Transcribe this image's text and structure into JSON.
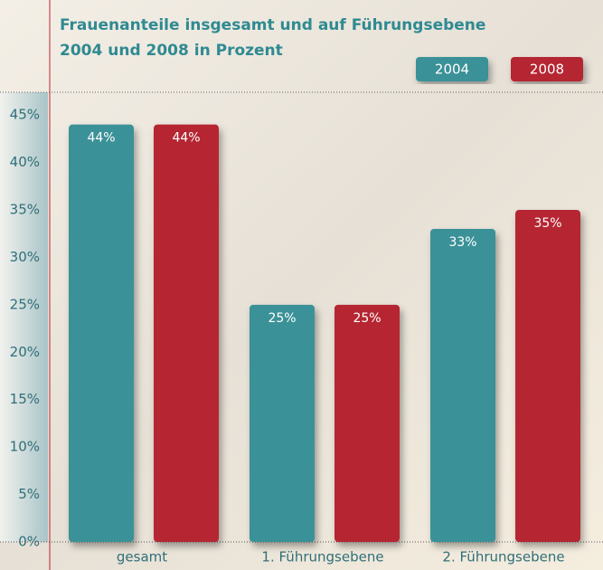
{
  "chart_data": {
    "type": "bar",
    "title": "Frauenanteile insgesamt und auf Führungsebene",
    "subtitle": "2004 und 2008 in Prozent",
    "categories": [
      "gesamt",
      "1. Führungsebene",
      "2. Führungsebene"
    ],
    "series": [
      {
        "name": "2004",
        "color": "#3a9198",
        "values": [
          44,
          25,
          33
        ],
        "value_labels": [
          "44%",
          "25%",
          "33%"
        ]
      },
      {
        "name": "2008",
        "color": "#b52532",
        "values": [
          44,
          25,
          35
        ],
        "value_labels": [
          "44%",
          "25%",
          "35%"
        ]
      }
    ],
    "ylim": [
      0,
      47.4
    ],
    "yticks": [
      {
        "value": 0,
        "label": "0%"
      },
      {
        "value": 5,
        "label": "5%"
      },
      {
        "value": 10,
        "label": "10%"
      },
      {
        "value": 15,
        "label": "15%"
      },
      {
        "value": 20,
        "label": "20%"
      },
      {
        "value": 25,
        "label": "25%"
      },
      {
        "value": 30,
        "label": "30%"
      },
      {
        "value": 35,
        "label": "35%"
      },
      {
        "value": 40,
        "label": "40%"
      },
      {
        "value": 45,
        "label": "45%"
      }
    ],
    "legend": "top-right"
  }
}
